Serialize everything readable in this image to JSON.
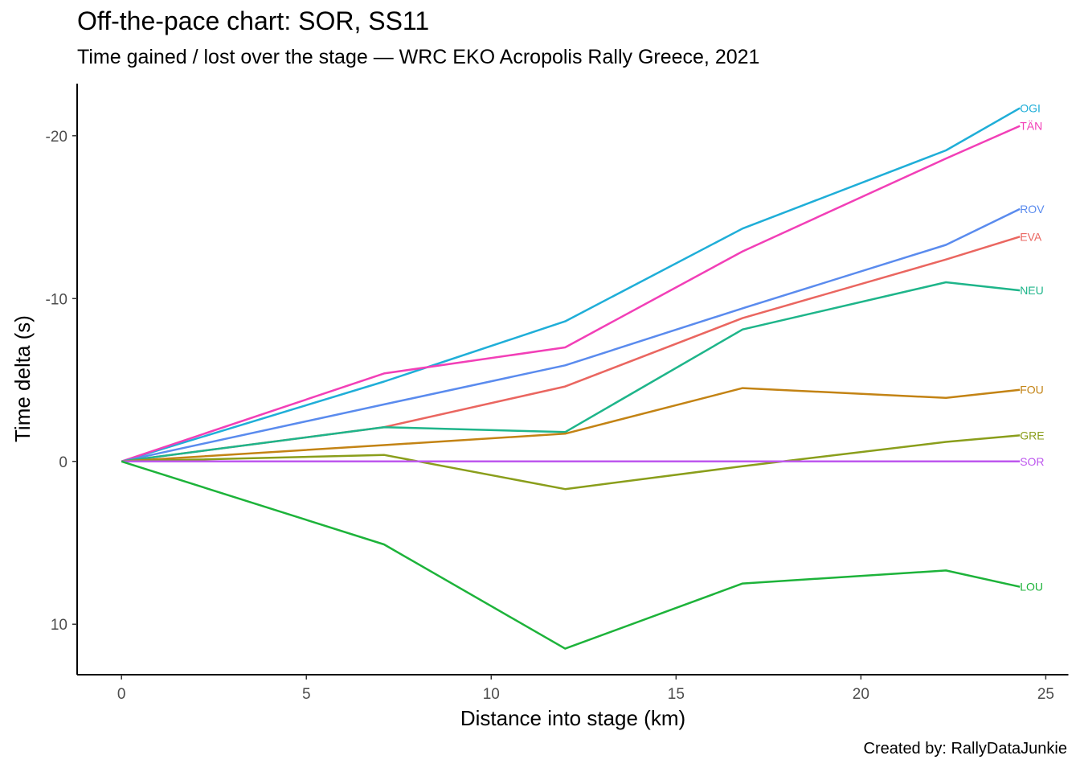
{
  "chart_data": {
    "type": "line",
    "title": "Off-the-pace chart: SOR, SS11",
    "subtitle": "Time gained / lost over the stage — WRC EKO Acropolis Rally Greece, 2021",
    "caption": "Created by: RallyDataJunkie",
    "xlabel": "Distance into stage (km)",
    "ylabel": "Time delta (s)",
    "xlim": [
      -1.2,
      25.6
    ],
    "ylim": [
      -23.2,
      13.1
    ],
    "y_reversed": true,
    "x_ticks": [
      0,
      5,
      10,
      15,
      20,
      25
    ],
    "x_tick_labels": [
      "0",
      "5",
      "10",
      "15",
      "20",
      "25"
    ],
    "y_ticks": [
      -20,
      -10,
      0,
      10
    ],
    "y_tick_labels": [
      "-20",
      "-10",
      "0",
      "10"
    ],
    "grid": false,
    "x": [
      0,
      7.1,
      12.0,
      16.8,
      22.3,
      24.3
    ],
    "series": [
      {
        "name": "OGI",
        "color": "#1FAED8",
        "values": [
          0,
          -4.9,
          -8.6,
          -14.3,
          -19.1,
          -21.7
        ]
      },
      {
        "name": "TÄN",
        "color": "#F23FB7",
        "values": [
          0,
          -5.4,
          -7.0,
          -12.9,
          -18.6,
          -20.6
        ]
      },
      {
        "name": "ROV",
        "color": "#5A8BEE",
        "values": [
          0,
          -3.5,
          -5.9,
          -9.4,
          -13.3,
          -15.5
        ]
      },
      {
        "name": "EVA",
        "color": "#EA6660",
        "values": [
          0,
          -2.1,
          -4.6,
          -8.8,
          -12.4,
          -13.8
        ]
      },
      {
        "name": "NEU",
        "color": "#1EB58A",
        "values": [
          0,
          -2.1,
          -1.8,
          -8.1,
          -11.0,
          -10.5
        ]
      },
      {
        "name": "FOU",
        "color": "#C38314",
        "values": [
          0,
          -1.0,
          -1.7,
          -4.5,
          -3.9,
          -4.4
        ]
      },
      {
        "name": "GRE",
        "color": "#8A9E1B",
        "values": [
          0,
          -0.4,
          1.7,
          0.3,
          -1.2,
          -1.6
        ]
      },
      {
        "name": "SOR",
        "color": "#BD57EE",
        "values": [
          0,
          0,
          0,
          0,
          0,
          0
        ]
      },
      {
        "name": "LOU",
        "color": "#1DB33A",
        "values": [
          0,
          5.1,
          11.5,
          7.5,
          6.7,
          7.7
        ]
      }
    ]
  }
}
